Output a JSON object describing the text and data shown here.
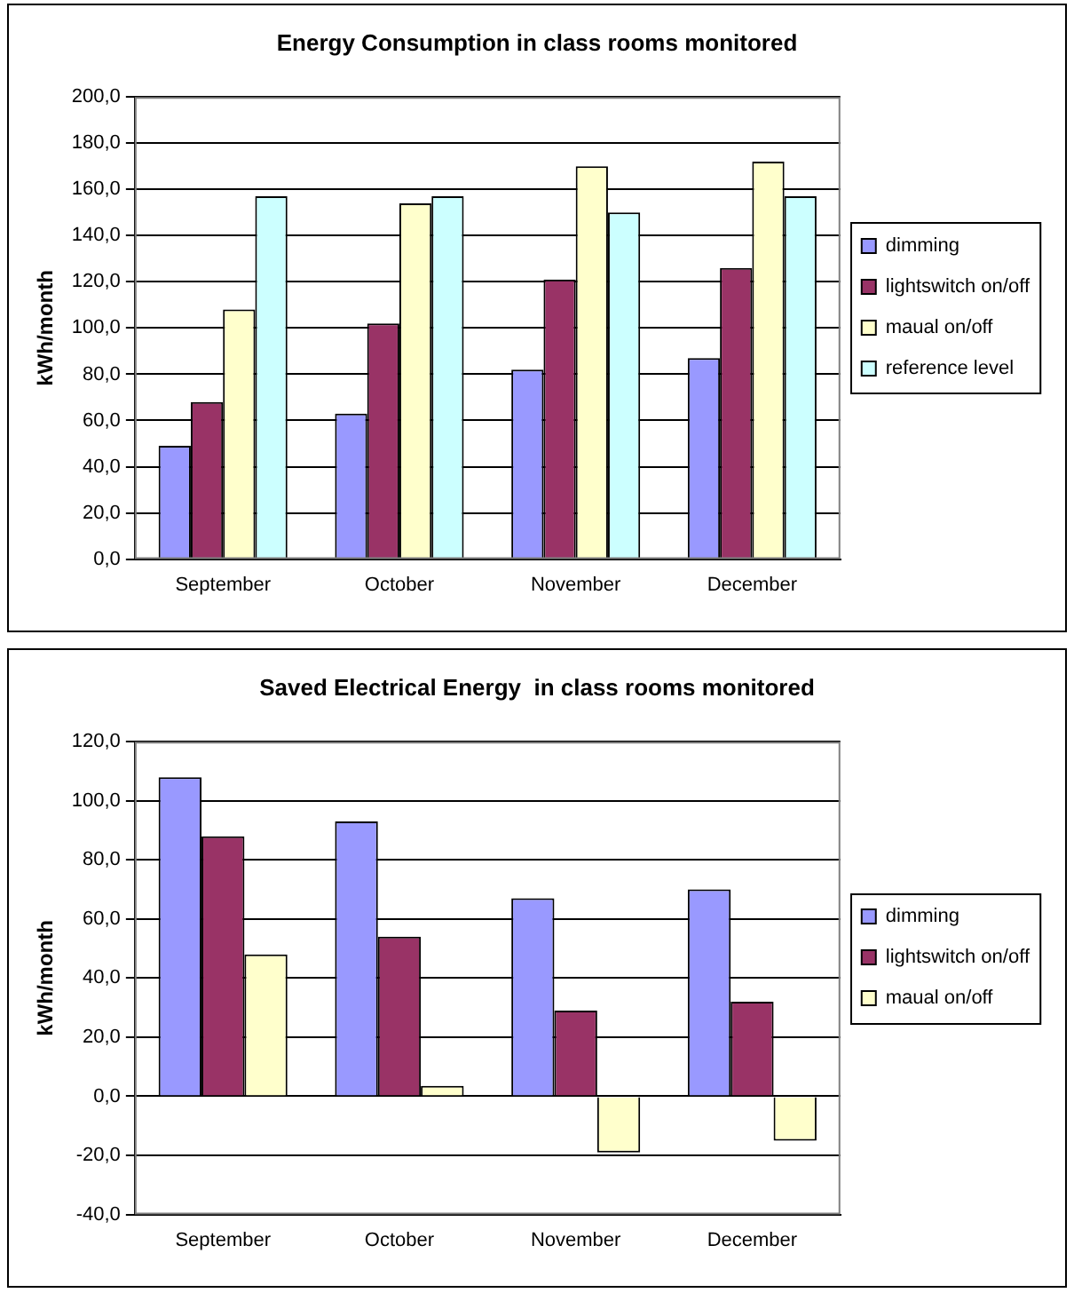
{
  "chart_data": [
    {
      "type": "bar",
      "title": "Energy Consumption in class rooms monitored",
      "ylabel": "kWh/month",
      "categories": [
        "September",
        "October",
        "November",
        "December"
      ],
      "series": [
        {
          "name": "dimming",
          "color": "#9999ff",
          "values": [
            49,
            63,
            82,
            87
          ]
        },
        {
          "name": "lightswitch on/off",
          "color": "#993366",
          "values": [
            68,
            102,
            121,
            126
          ]
        },
        {
          "name": "maual on/off",
          "color": "#ffffcc",
          "values": [
            108,
            154,
            170,
            172
          ]
        },
        {
          "name": "reference level",
          "color": "#ccffff",
          "values": [
            157,
            157,
            150,
            157
          ]
        }
      ],
      "ylim": [
        0,
        200
      ],
      "yticks": [
        {
          "value": 0,
          "label": "0,0"
        },
        {
          "value": 20,
          "label": "20,0"
        },
        {
          "value": 40,
          "label": "40,0"
        },
        {
          "value": 60,
          "label": "60,0"
        },
        {
          "value": 80,
          "label": "80,0"
        },
        {
          "value": 100,
          "label": "100,0"
        },
        {
          "value": 120,
          "label": "120,0"
        },
        {
          "value": 140,
          "label": "140,0"
        },
        {
          "value": 160,
          "label": "160,0"
        },
        {
          "value": 180,
          "label": "180,0"
        },
        {
          "value": 200,
          "label": "200,0"
        }
      ],
      "grid": "y",
      "legend": "right"
    },
    {
      "type": "bar",
      "title": "Saved Electrical Energy  in class rooms monitored",
      "ylabel": "kWh/month",
      "categories": [
        "September",
        "October",
        "November",
        "December"
      ],
      "series": [
        {
          "name": "dimming",
          "color": "#9999ff",
          "values": [
            108,
            93,
            67,
            70
          ]
        },
        {
          "name": "lightswitch on/off",
          "color": "#993366",
          "values": [
            88,
            54,
            29,
            32
          ]
        },
        {
          "name": "maual on/off",
          "color": "#ffffcc",
          "values": [
            48,
            3.5,
            -19,
            -15
          ]
        }
      ],
      "ylim": [
        -40,
        120
      ],
      "yticks": [
        {
          "value": -40,
          "label": "-40,0"
        },
        {
          "value": -20,
          "label": "-20,0"
        },
        {
          "value": 0,
          "label": "0,0"
        },
        {
          "value": 20,
          "label": "20,0"
        },
        {
          "value": 40,
          "label": "40,0"
        },
        {
          "value": 60,
          "label": "60,0"
        },
        {
          "value": 80,
          "label": "80,0"
        },
        {
          "value": 100,
          "label": "100,0"
        },
        {
          "value": 120,
          "label": "120,0"
        }
      ],
      "grid": "y",
      "legend": "right"
    }
  ]
}
